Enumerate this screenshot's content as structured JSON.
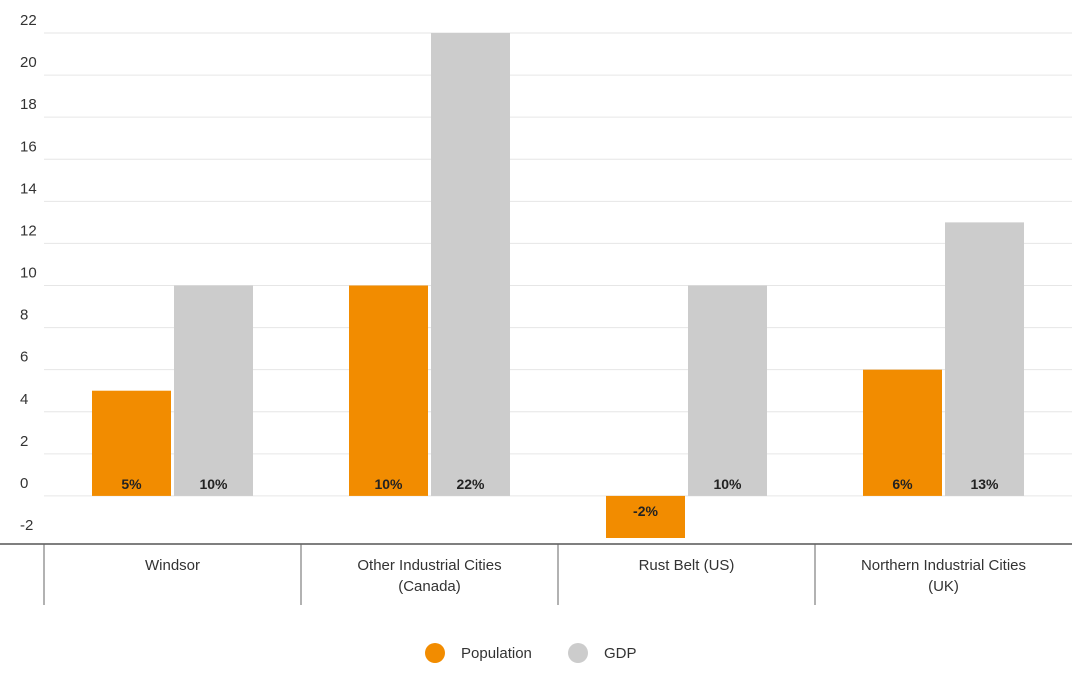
{
  "chart_data": {
    "type": "bar",
    "categories": [
      [
        "Windsor"
      ],
      [
        "Other Industrial Cities",
        "(Canada)"
      ],
      [
        "Rust Belt (US)"
      ],
      [
        "Northern Industrial Cities",
        "(UK)"
      ]
    ],
    "series": [
      {
        "name": "Population",
        "color": "#f28c00",
        "values": [
          5,
          10,
          -2,
          6
        ],
        "labels": [
          "5%",
          "10%",
          "-2%",
          "6%"
        ]
      },
      {
        "name": "GDP",
        "color": "#cccccc",
        "values": [
          10,
          22,
          10,
          13
        ],
        "labels": [
          "10%",
          "22%",
          "10%",
          "13%"
        ]
      }
    ],
    "yticks": [
      "22",
      "20",
      "18",
      "16",
      "14",
      "12",
      "10",
      "8",
      "6",
      "4",
      "2",
      "0",
      "-2"
    ],
    "ylim": [
      -2,
      22
    ],
    "grid": true,
    "legend_position": "bottom",
    "title": "",
    "xlabel": "",
    "ylabel": ""
  }
}
